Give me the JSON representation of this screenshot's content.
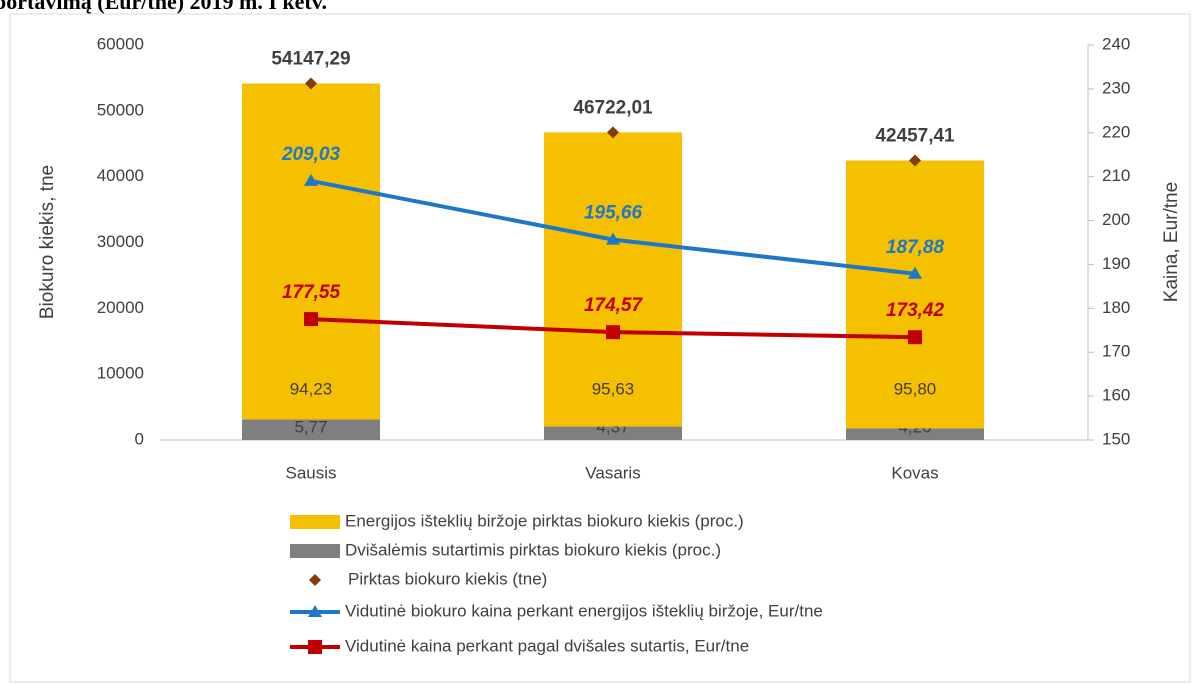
{
  "chart_data": {
    "type": "bar",
    "stacked": true,
    "title": "portavimą (Eur/tne) 2019 m. I ketv.",
    "y_label": "Biokuro kiekis, tne",
    "y2_label": "Kaina, Eur/tne",
    "categories": [
      "Sausis",
      "Vasaris",
      "Kovas"
    ],
    "ylim": [
      0,
      60000
    ],
    "yticks": [
      0,
      10000,
      20000,
      30000,
      40000,
      50000,
      60000
    ],
    "y2lim": [
      150,
      240
    ],
    "y2ticks": [
      150,
      160,
      170,
      180,
      190,
      200,
      210,
      220,
      230,
      240
    ],
    "series": [
      {
        "name": "Dvišalėmis sutartimis pirktas biokuro kiekis (proc.)",
        "type": "bar",
        "share_of": 2,
        "color": "#7f7f7f",
        "values": [
          5.77,
          4.37,
          4.2
        ],
        "value_labels": [
          "5,77",
          "4,37",
          "4,20"
        ]
      },
      {
        "name": "Energijos išteklių biržoje pirktas biokuro kiekis (proc.)",
        "type": "bar",
        "share_of": 2,
        "color": "#f5c000",
        "values": [
          94.23,
          95.63,
          95.8
        ],
        "value_labels": [
          "94,23",
          "95,63",
          "95,80"
        ]
      },
      {
        "name": "Pirktas biokuro kiekis (tne)",
        "type": "scatter",
        "color": "#843c0c",
        "values": [
          54147.29,
          46722.01,
          42457.41
        ],
        "value_labels": [
          "54147,29",
          "46722,01",
          "42457,41"
        ]
      },
      {
        "name": "Vidutinė biokuro kaina perkant energijos išteklių biržoje, Eur/tne",
        "type": "line",
        "marker": "triangle",
        "axis": "y2",
        "color": "#1f77c8",
        "values": [
          209.03,
          195.66,
          187.88
        ],
        "value_labels": [
          "209,03",
          "195,66",
          "187,88"
        ]
      },
      {
        "name": "Vidutinė kaina perkant pagal dvišales sutartis, Eur/tne",
        "type": "line",
        "marker": "square",
        "axis": "y2",
        "color": "#c00000",
        "values": [
          177.55,
          174.57,
          173.42
        ],
        "value_labels": [
          "177,55",
          "174,57",
          "173,42"
        ]
      }
    ],
    "legend_order": [
      1,
      0,
      2,
      3,
      4
    ]
  }
}
